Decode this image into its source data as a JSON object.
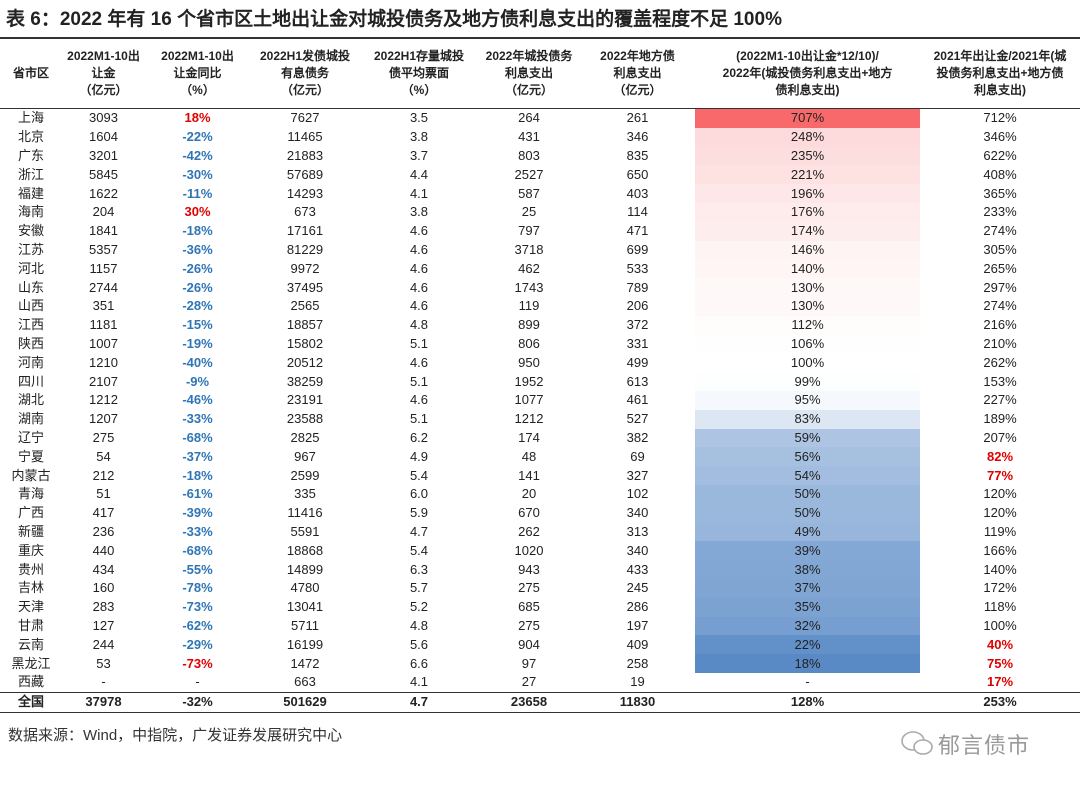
{
  "title": "表 6：2022 年有 16 个省市区土地出让金对城投债务及地方债利息支出的覆盖程度不足 100%",
  "table": {
    "headers": [
      [
        "省市区"
      ],
      [
        "2022M1-10出",
        "让金",
        "（亿元）"
      ],
      [
        "2022M1-10出",
        "让金同比",
        "（%）"
      ],
      [
        "2022H1发债城投",
        "有息债务",
        "（亿元）"
      ],
      [
        "2022H1存量城投",
        "债平均票面",
        "（%）"
      ],
      [
        "2022年城投债务",
        "利息支出",
        "（亿元）"
      ],
      [
        "2022年地方债",
        "利息支出",
        "（亿元）"
      ],
      [
        "(2022M1-10出让金*12/10)/",
        "2022年(城投债务利息支出+地方",
        "债利息支出)"
      ],
      [
        "2021年出让金/2021年(城",
        "投债务利息支出+地方债",
        "利息支出)"
      ]
    ],
    "rows": [
      [
        "上海",
        "3093",
        "18%",
        "7627",
        "3.5",
        "264",
        "261",
        "707%",
        "712%"
      ],
      [
        "北京",
        "1604",
        "-22%",
        "11465",
        "3.8",
        "431",
        "346",
        "248%",
        "346%"
      ],
      [
        "广东",
        "3201",
        "-42%",
        "21883",
        "3.7",
        "803",
        "835",
        "235%",
        "622%"
      ],
      [
        "浙江",
        "5845",
        "-30%",
        "57689",
        "4.4",
        "2527",
        "650",
        "221%",
        "408%"
      ],
      [
        "福建",
        "1622",
        "-11%",
        "14293",
        "4.1",
        "587",
        "403",
        "196%",
        "365%"
      ],
      [
        "海南",
        "204",
        "30%",
        "673",
        "3.8",
        "25",
        "114",
        "176%",
        "233%"
      ],
      [
        "安徽",
        "1841",
        "-18%",
        "17161",
        "4.6",
        "797",
        "471",
        "174%",
        "274%"
      ],
      [
        "江苏",
        "5357",
        "-36%",
        "81229",
        "4.6",
        "3718",
        "699",
        "146%",
        "305%"
      ],
      [
        "河北",
        "1157",
        "-26%",
        "9972",
        "4.6",
        "462",
        "533",
        "140%",
        "265%"
      ],
      [
        "山东",
        "2744",
        "-26%",
        "37495",
        "4.6",
        "1743",
        "789",
        "130%",
        "297%"
      ],
      [
        "山西",
        "351",
        "-28%",
        "2565",
        "4.6",
        "119",
        "206",
        "130%",
        "274%"
      ],
      [
        "江西",
        "1181",
        "-15%",
        "18857",
        "4.8",
        "899",
        "372",
        "112%",
        "216%"
      ],
      [
        "陕西",
        "1007",
        "-19%",
        "15802",
        "5.1",
        "806",
        "331",
        "106%",
        "210%"
      ],
      [
        "河南",
        "1210",
        "-40%",
        "20512",
        "4.6",
        "950",
        "499",
        "100%",
        "262%"
      ],
      [
        "四川",
        "2107",
        "-9%",
        "38259",
        "5.1",
        "1952",
        "613",
        "99%",
        "153%"
      ],
      [
        "湖北",
        "1212",
        "-46%",
        "23191",
        "4.6",
        "1077",
        "461",
        "95%",
        "227%"
      ],
      [
        "湖南",
        "1207",
        "-33%",
        "23588",
        "5.1",
        "1212",
        "527",
        "83%",
        "189%"
      ],
      [
        "辽宁",
        "275",
        "-68%",
        "2825",
        "6.2",
        "174",
        "382",
        "59%",
        "207%"
      ],
      [
        "宁夏",
        "54",
        "-37%",
        "967",
        "4.9",
        "48",
        "69",
        "56%",
        "82%"
      ],
      [
        "内蒙古",
        "212",
        "-18%",
        "2599",
        "5.4",
        "141",
        "327",
        "54%",
        "77%"
      ],
      [
        "青海",
        "51",
        "-61%",
        "335",
        "6.0",
        "20",
        "102",
        "50%",
        "120%"
      ],
      [
        "广西",
        "417",
        "-39%",
        "11416",
        "5.9",
        "670",
        "340",
        "50%",
        "120%"
      ],
      [
        "新疆",
        "236",
        "-33%",
        "5591",
        "4.7",
        "262",
        "313",
        "49%",
        "119%"
      ],
      [
        "重庆",
        "440",
        "-68%",
        "18868",
        "5.4",
        "1020",
        "340",
        "39%",
        "166%"
      ],
      [
        "贵州",
        "434",
        "-55%",
        "14899",
        "6.3",
        "943",
        "433",
        "38%",
        "140%"
      ],
      [
        "吉林",
        "160",
        "-78%",
        "4780",
        "5.7",
        "275",
        "245",
        "37%",
        "172%"
      ],
      [
        "天津",
        "283",
        "-73%",
        "13041",
        "5.2",
        "685",
        "286",
        "35%",
        "118%"
      ],
      [
        "甘肃",
        "127",
        "-62%",
        "5711",
        "4.8",
        "275",
        "197",
        "32%",
        "100%"
      ],
      [
        "云南",
        "244",
        "-29%",
        "16199",
        "5.6",
        "904",
        "409",
        "22%",
        "40%"
      ],
      [
        "黑龙江",
        "53",
        "-73%",
        "1472",
        "6.6",
        "97",
        "258",
        "18%",
        "75%"
      ],
      [
        "西藏",
        "-",
        "-",
        "663",
        "4.1",
        "27",
        "19",
        "-",
        "17%"
      ]
    ],
    "total": [
      "全国",
      "37978",
      "-32%",
      "501629",
      "4.7",
      "23658",
      "11830",
      "128%",
      "253%"
    ],
    "red_cells": [
      "0.2",
      "5.2",
      "29.2",
      "18.8",
      "19.8",
      "28.8",
      "29.8",
      "30.8"
    ],
    "heat_column": 7,
    "blue_column": 2
  },
  "source": "数据来源：Wind，中指院，广发证券发展研究中心",
  "watermark": "郁言债市"
}
